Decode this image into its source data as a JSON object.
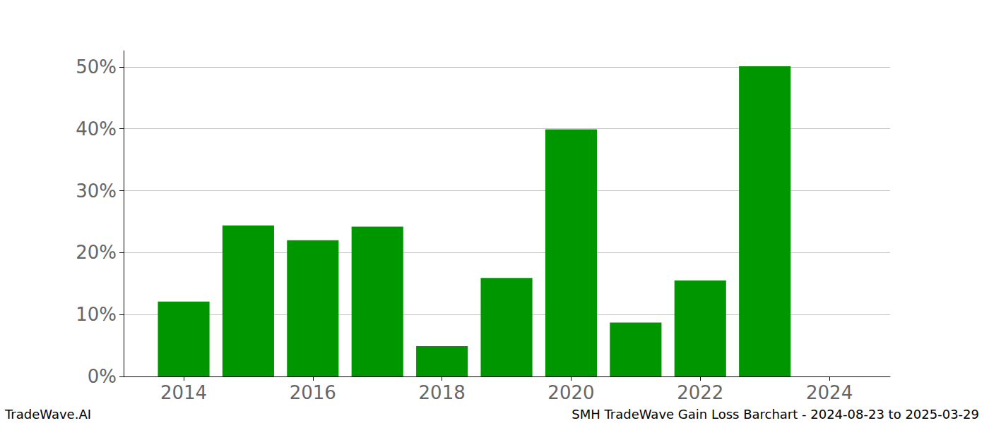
{
  "chart_data": {
    "type": "bar",
    "title": "SMH TradeWave Gain Loss Barchart - 2024-08-23 to 2025-03-29",
    "annotations": [
      "TradeWave.AI"
    ],
    "x": [
      2014,
      2015,
      2016,
      2017,
      2018,
      2019,
      2020,
      2021,
      2022,
      2023
    ],
    "values": [
      12.1,
      24.4,
      22.0,
      24.2,
      4.9,
      15.9,
      39.9,
      8.7,
      15.5,
      50.1
    ],
    "color": "#009600",
    "xlim": [
      2013.07,
      2024.94
    ],
    "xticks": [
      2014,
      2016,
      2018,
      2020,
      2022,
      2024
    ],
    "ylim": [
      0,
      52.6
    ],
    "yticks": [
      {
        "value": 0,
        "label": "0%"
      },
      {
        "value": 10,
        "label": "10%"
      },
      {
        "value": 20,
        "label": "20%"
      },
      {
        "value": 30,
        "label": "30%"
      },
      {
        "value": 40,
        "label": "40%"
      },
      {
        "value": 50,
        "label": "50%"
      }
    ],
    "grid": true
  }
}
